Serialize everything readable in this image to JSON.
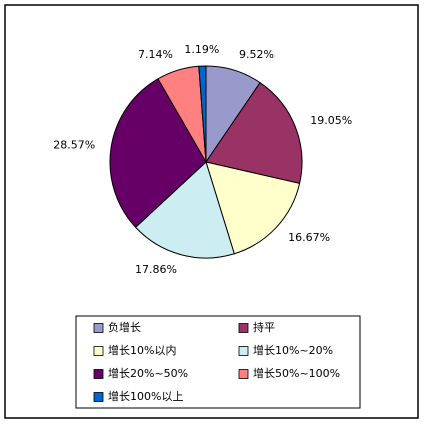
{
  "chart_data": {
    "type": "pie",
    "categories": [
      "负增长",
      "持平",
      "增长10%以内",
      "增长10%~20%",
      "增长20%~50%",
      "增长50%~100%",
      "增长100%以上"
    ],
    "values": [
      9.52,
      19.05,
      16.67,
      17.86,
      28.57,
      7.14,
      1.19
    ],
    "value_labels": [
      "9.52%",
      "19.05%",
      "16.67%",
      "17.86%",
      "28.57%",
      "7.14%",
      "1.19%"
    ],
    "colors": [
      "#9999cc",
      "#993366",
      "#ffffcc",
      "#cceef2",
      "#660066",
      "#ff8080",
      "#0066cc"
    ]
  }
}
